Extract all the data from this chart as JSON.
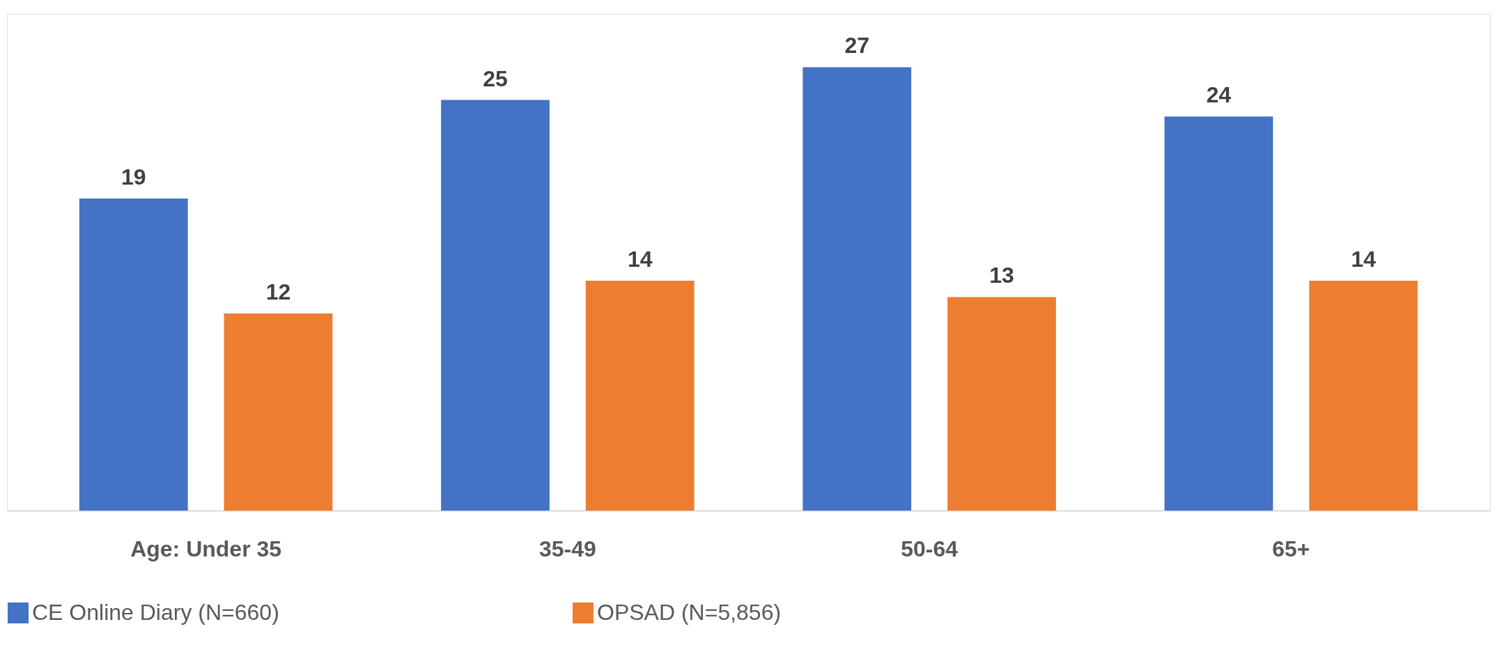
{
  "chart_data": {
    "type": "bar",
    "categories": [
      "Age: Under 35",
      "35-49",
      "50-64",
      "65+"
    ],
    "series": [
      {
        "name": "CE Online Diary (N=660)",
        "color": "#4472c4",
        "values": [
          19,
          25,
          27,
          24
        ]
      },
      {
        "name": "OPSAD (N=5,856)",
        "color": "#ed7d31",
        "values": [
          12,
          14,
          13,
          14
        ]
      }
    ],
    "data_labels": true,
    "legend": "bottom",
    "grid": false,
    "tick_labels": "x"
  }
}
